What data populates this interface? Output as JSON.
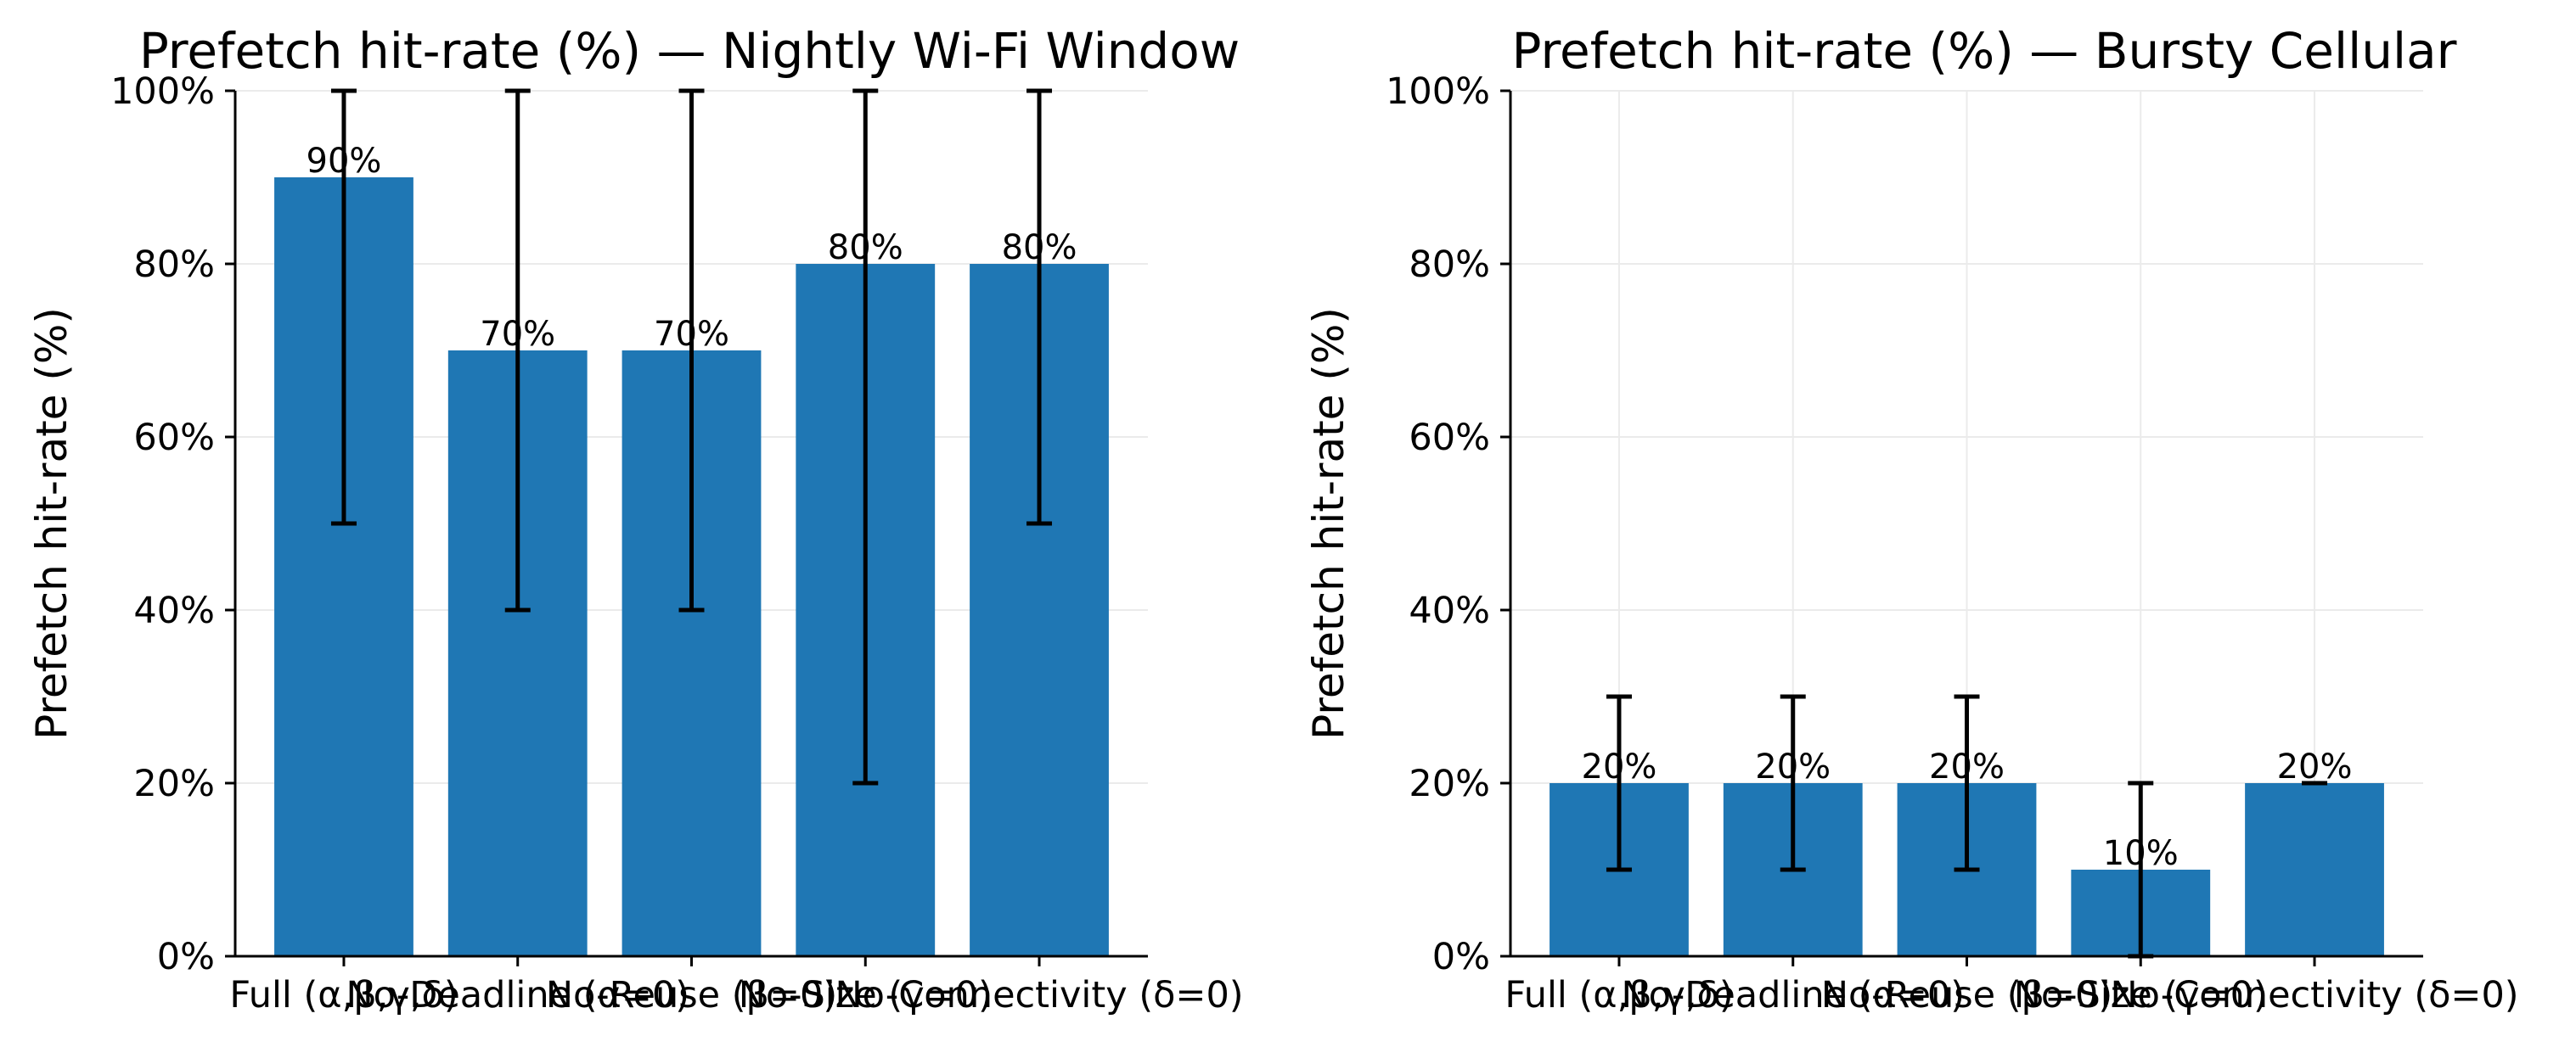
{
  "colors": {
    "bar": "#1f77b4",
    "error_bar": "#000000",
    "grid": "#ebebeb",
    "axis": "#000000"
  },
  "chart_data": [
    {
      "type": "bar",
      "title": "Prefetch hit-rate (%) — Nightly Wi-Fi Window",
      "xlabel": "",
      "ylabel": "Prefetch hit-rate (%)",
      "ylim": [
        0,
        100
      ],
      "yticks": [
        "0%",
        "20%",
        "40%",
        "60%",
        "80%",
        "100%"
      ],
      "grid": true,
      "categories": [
        "Full (α,β,γ,δ)",
        "No-Deadline (α=0)",
        "No-Reuse (β=0)",
        "No-Size (γ=0)",
        "No-Connectivity (δ=0)"
      ],
      "values": [
        90,
        70,
        70,
        80,
        80
      ],
      "error_low": [
        50,
        40,
        40,
        20,
        50
      ],
      "error_high": [
        100,
        100,
        100,
        100,
        100
      ],
      "data_labels": [
        "90%",
        "70%",
        "70%",
        "80%",
        "80%"
      ]
    },
    {
      "type": "bar",
      "title": "Prefetch hit-rate (%) — Bursty Cellular",
      "xlabel": "",
      "ylabel": "Prefetch hit-rate (%)",
      "ylim": [
        0,
        100
      ],
      "yticks": [
        "0%",
        "20%",
        "40%",
        "60%",
        "80%",
        "100%"
      ],
      "grid": true,
      "categories": [
        "Full (α,β,γ,δ)",
        "No-Deadline (α=0)",
        "No-Reuse (β=0)",
        "No-Size (γ=0)",
        "No-Connectivity (δ=0)"
      ],
      "values": [
        20,
        20,
        20,
        10,
        20
      ],
      "error_low": [
        10,
        10,
        10,
        0,
        20
      ],
      "error_high": [
        30,
        30,
        30,
        20,
        20
      ],
      "data_labels": [
        "20%",
        "20%",
        "20%",
        "10%",
        "20%"
      ]
    }
  ]
}
